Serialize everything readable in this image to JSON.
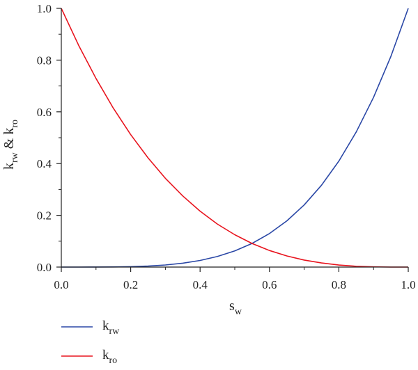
{
  "chart_data": {
    "type": "line",
    "x_axis": {
      "base": "s",
      "sub": "w",
      "lim": [
        0,
        1
      ],
      "ticks": [
        "0.0",
        "0.2",
        "0.4",
        "0.6",
        "0.8",
        "1.0"
      ]
    },
    "y_axis": {
      "p1": "k",
      "p1_sub": "rw",
      "p2": " & k",
      "p2_sub": "ro",
      "lim": [
        0,
        1
      ],
      "ticks": [
        "0.0",
        "0.2",
        "0.4",
        "0.6",
        "0.8",
        "1.0"
      ]
    },
    "grid": false,
    "legend_position": "bottom-left, below plot",
    "series": [
      {
        "name_base": "k",
        "name_sub": "rw",
        "color": "#2a47a6",
        "x": [
          0,
          0.05,
          0.1,
          0.15,
          0.2,
          0.25,
          0.3,
          0.35,
          0.4,
          0.45,
          0.5,
          0.55,
          0.6,
          0.65,
          0.7,
          0.75,
          0.8,
          0.85,
          0.9,
          0.95,
          1.0
        ],
        "y": [
          0,
          0.0,
          0.0001,
          0.0005,
          0.0016,
          0.0039,
          0.0081,
          0.015,
          0.0256,
          0.041,
          0.0625,
          0.0915,
          0.1296,
          0.1785,
          0.2401,
          0.3164,
          0.4096,
          0.522,
          0.6561,
          0.8145,
          1.0
        ]
      },
      {
        "name_base": "k",
        "name_sub": "ro",
        "color": "#e8141e",
        "x": [
          0,
          0.05,
          0.1,
          0.15,
          0.2,
          0.25,
          0.3,
          0.35,
          0.4,
          0.45,
          0.5,
          0.55,
          0.6,
          0.65,
          0.7,
          0.75,
          0.8,
          0.85,
          0.9,
          0.95,
          1.0
        ],
        "y": [
          1.0,
          0.857,
          0.729,
          0.614,
          0.512,
          0.422,
          0.343,
          0.275,
          0.216,
          0.166,
          0.125,
          0.091,
          0.064,
          0.043,
          0.027,
          0.016,
          0.008,
          0.003,
          0.001,
          0.0,
          0
        ]
      }
    ]
  }
}
